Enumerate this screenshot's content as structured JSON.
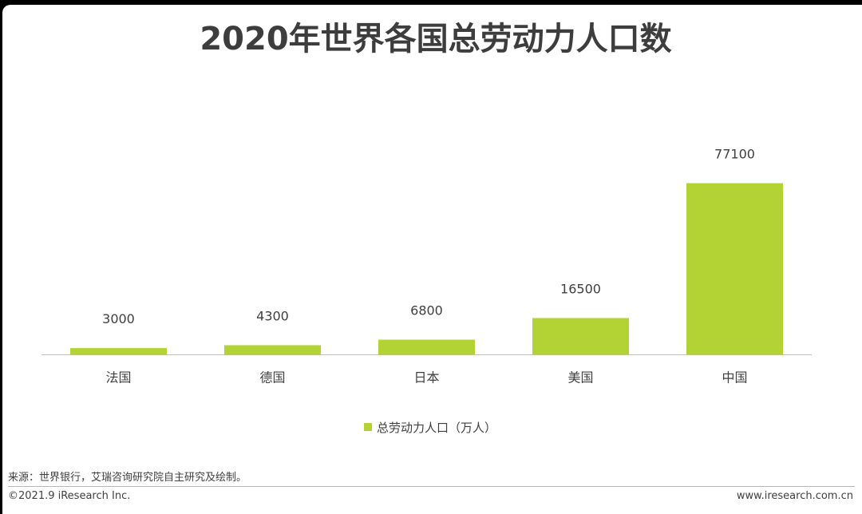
{
  "title": "2020年世界各国总劳动力人口数",
  "chart_data": {
    "type": "bar",
    "categories": [
      "法国",
      "德国",
      "日本",
      "美国",
      "中国"
    ],
    "series": [
      {
        "name": "总劳动力人口（万人）",
        "values": [
          3000,
          4300,
          6800,
          16500,
          77100
        ]
      }
    ],
    "data_labels": [
      "3000",
      "4300",
      "6800",
      "16500",
      "77100"
    ],
    "ylim": [
      0,
      90000
    ],
    "y_axis_visible": false,
    "grid": false,
    "legend_position": "bottom",
    "bar_color": "#b3d334"
  },
  "legend": {
    "label": "总劳动力人口（万人）"
  },
  "footer": {
    "source": "来源：世界银行，艾瑞咨询研究院自主研究及绘制。",
    "copyright": "©2021.9 iResearch Inc.",
    "website": "www.iresearch.com.cn"
  }
}
